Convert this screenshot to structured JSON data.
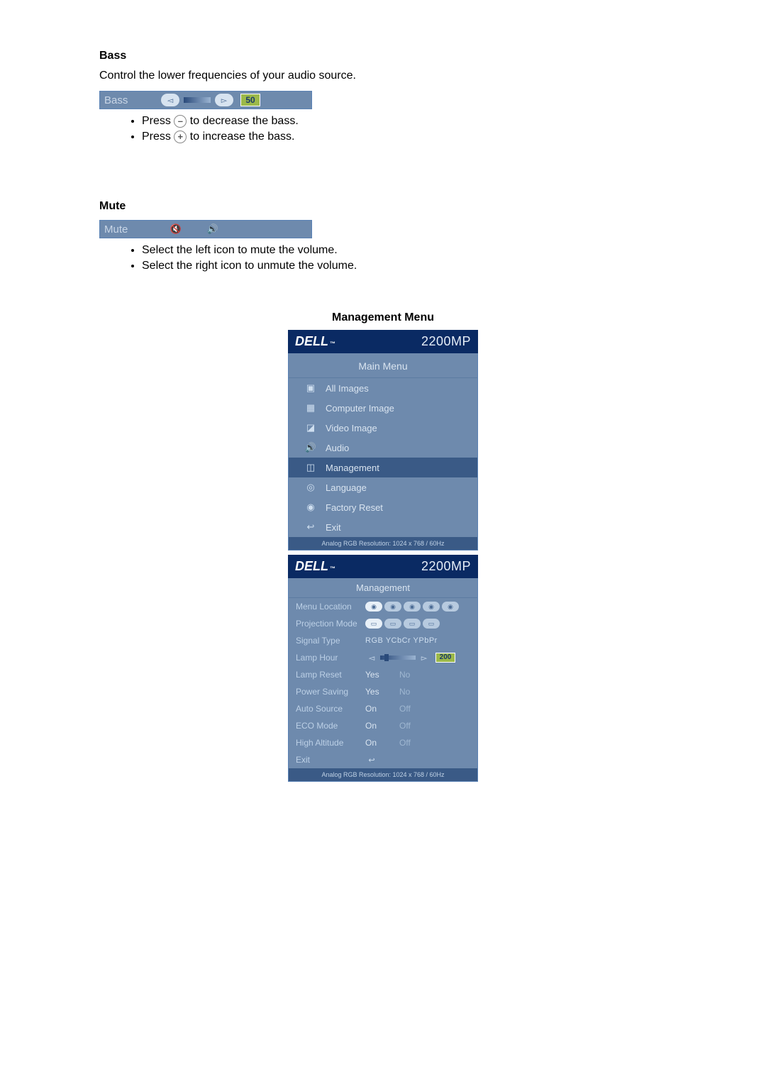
{
  "bass": {
    "heading": "Bass",
    "desc": "Control the lower frequencies of your audio source.",
    "bar_label": "Bass",
    "value": "50",
    "bullet1_pre": "Press ",
    "bullet1_sym": "–",
    "bullet1_post": " to decrease the bass.",
    "bullet2_pre": "Press ",
    "bullet2_sym": "+",
    "bullet2_post": " to increase the bass."
  },
  "mute": {
    "heading": "Mute",
    "bar_label": "Mute",
    "bullet1": "Select the left icon to mute the volume.",
    "bullet2": "Select the right icon to unmute the volume."
  },
  "mgmt": {
    "heading": "Management Menu",
    "logo": "DELL",
    "tm": "™",
    "model": "2200MP",
    "main_title": "Main Menu",
    "items": [
      {
        "icon": "▣",
        "label": "All Images"
      },
      {
        "icon": "▦",
        "label": "Computer Image"
      },
      {
        "icon": "◪",
        "label": "Video Image"
      },
      {
        "icon": "🔊",
        "label": "Audio"
      },
      {
        "icon": "◫",
        "label": "Management",
        "selected": true
      },
      {
        "icon": "◎",
        "label": "Language"
      },
      {
        "icon": "◉",
        "label": "Factory Reset"
      },
      {
        "icon": "↩",
        "label": "Exit"
      }
    ],
    "footer": "Analog RGB Resolution: 1024 x 768 / 60Hz",
    "sub_title": "Management",
    "rows": {
      "menu_loc": "Menu Location",
      "proj_mode": "Projection Mode",
      "signal": "Signal Type",
      "signal_opts": "RGB  YCbCr YPbPr",
      "lamp_hour": "Lamp Hour",
      "lamp_hour_val": "200",
      "lamp_reset": "Lamp Reset",
      "power_saving": "Power Saving",
      "auto_source": "Auto Source",
      "eco": "ECO Mode",
      "high_alt": "High Altitude",
      "exit": "Exit",
      "yes": "Yes",
      "no": "No",
      "on": "On",
      "off": "Off"
    }
  },
  "colors": {
    "osd_bg": "#6e8aad",
    "osd_dark": "#3a5a86",
    "header_bg": "#0a2a63",
    "value_bg": "#9cb94a"
  }
}
